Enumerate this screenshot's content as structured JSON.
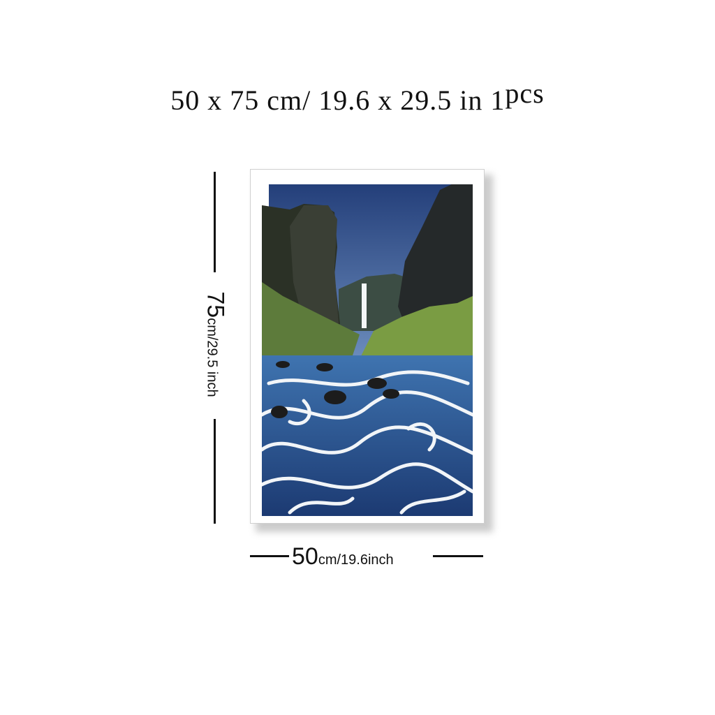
{
  "headline": {
    "main": "50 x 75 cm/ 19.6  x  29.5 in ",
    "count": "1",
    "unit": "pcs"
  },
  "height_label": {
    "value": "75",
    "unit": "cm/29.5 inch"
  },
  "width_label": {
    "value": "50",
    "unit": "cm/19.6inch"
  },
  "colors": {
    "sky": "#2f4f8a",
    "cliff": "#2d3328",
    "moss": "#5f7a3a",
    "water_dark": "#1f3f7a",
    "water_light": "#4f86c0"
  }
}
